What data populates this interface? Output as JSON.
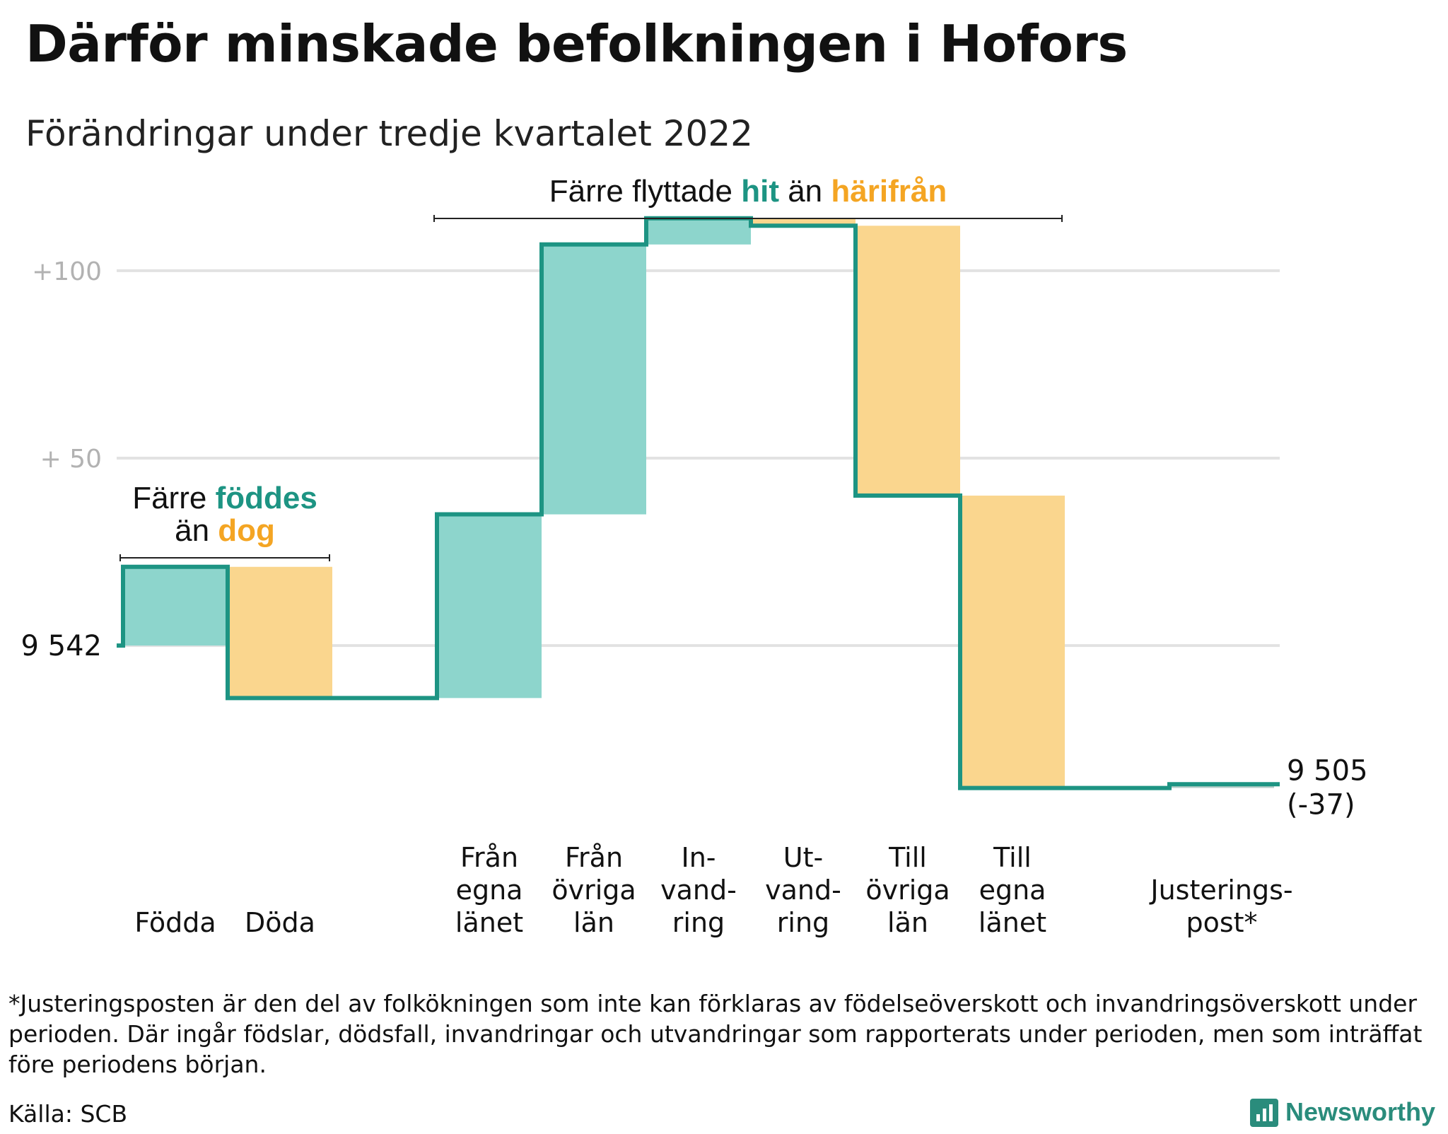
{
  "title": "Därför minskade befolkningen i Hofors",
  "subtitle": "Förändringar under tredje kvartalet 2022",
  "colors": {
    "increase": "#8dd5cc",
    "decrease": "#fad68e",
    "line": "#1d9483",
    "adjustment": "#b7cfc9",
    "grid": "#e2e2e2",
    "tick": "#b2b2b2",
    "teal_text": "#1d9483",
    "orange_text": "#f4a523"
  },
  "chart_data": {
    "type": "waterfall",
    "start": 9542,
    "start_label": "9 542",
    "end": 9505,
    "end_label": "9 505",
    "change_label": "(-37)",
    "y_ticks": [
      {
        "value": 9592,
        "label": "+ 50"
      },
      {
        "value": 9642,
        "label": "+100"
      }
    ],
    "ylim": [
      9496,
      9655
    ],
    "grid": true,
    "steps": [
      {
        "category": "Födda",
        "label_lines": [
          "Födda"
        ],
        "value": 21,
        "kind": "increase"
      },
      {
        "category": "Döda",
        "label_lines": [
          "Döda"
        ],
        "value": -35,
        "kind": "decrease"
      },
      {
        "category": "",
        "label_lines": [],
        "value": 0,
        "kind": "gap"
      },
      {
        "category": "Från egna länet",
        "label_lines": [
          "Från",
          "egna",
          "länet"
        ],
        "value": 49,
        "kind": "increase"
      },
      {
        "category": "Från övriga län",
        "label_lines": [
          "Från",
          "övriga",
          "län"
        ],
        "value": 72,
        "kind": "increase"
      },
      {
        "category": "Invandring",
        "label_lines": [
          "In-",
          "vand-",
          "ring"
        ],
        "value": 7,
        "kind": "increase"
      },
      {
        "category": "Utvandring",
        "label_lines": [
          "Ut-",
          "vand-",
          "ring"
        ],
        "value": -2,
        "kind": "decrease"
      },
      {
        "category": "Till övriga län",
        "label_lines": [
          "Till",
          "övriga",
          "län"
        ],
        "value": -72,
        "kind": "decrease"
      },
      {
        "category": "Till egna länet",
        "label_lines": [
          "Till",
          "egna",
          "länet"
        ],
        "value": -78,
        "kind": "decrease"
      },
      {
        "category": "",
        "label_lines": [],
        "value": 0,
        "kind": "gap"
      },
      {
        "category": "Justeringspost*",
        "label_lines": [
          "Justerings-",
          "post*"
        ],
        "value": 1,
        "kind": "adjustment"
      }
    ],
    "annotations": [
      {
        "lines": [
          [
            {
              "text": "Färre ",
              "color": "#111111",
              "bold": false
            },
            {
              "text": "föddes",
              "color": "#1d9483",
              "bold": true
            }
          ],
          [
            {
              "text": "än ",
              "color": "#111111",
              "bold": false
            },
            {
              "text": "dog",
              "color": "#f4a523",
              "bold": true
            }
          ]
        ],
        "span": [
          0,
          1
        ]
      },
      {
        "lines": [
          [
            {
              "text": "Färre flyttade ",
              "color": "#111111",
              "bold": false
            },
            {
              "text": "hit",
              "color": "#1d9483",
              "bold": true
            },
            {
              "text": " än ",
              "color": "#111111",
              "bold": false
            },
            {
              "text": "härifrån",
              "color": "#f4a523",
              "bold": true
            }
          ]
        ],
        "span": [
          3,
          8
        ]
      }
    ]
  },
  "footnote": "*Justeringsposten är den del av folkökningen som inte kan förklaras av födelseöverskott och invandringsöverskott under perioden. Där ingår födslar, dödsfall, invandringar och utvandringar som rapporterats under perioden, men som inträffat före periodens början.",
  "source": "Källa: SCB",
  "brand": "Newsworthy"
}
